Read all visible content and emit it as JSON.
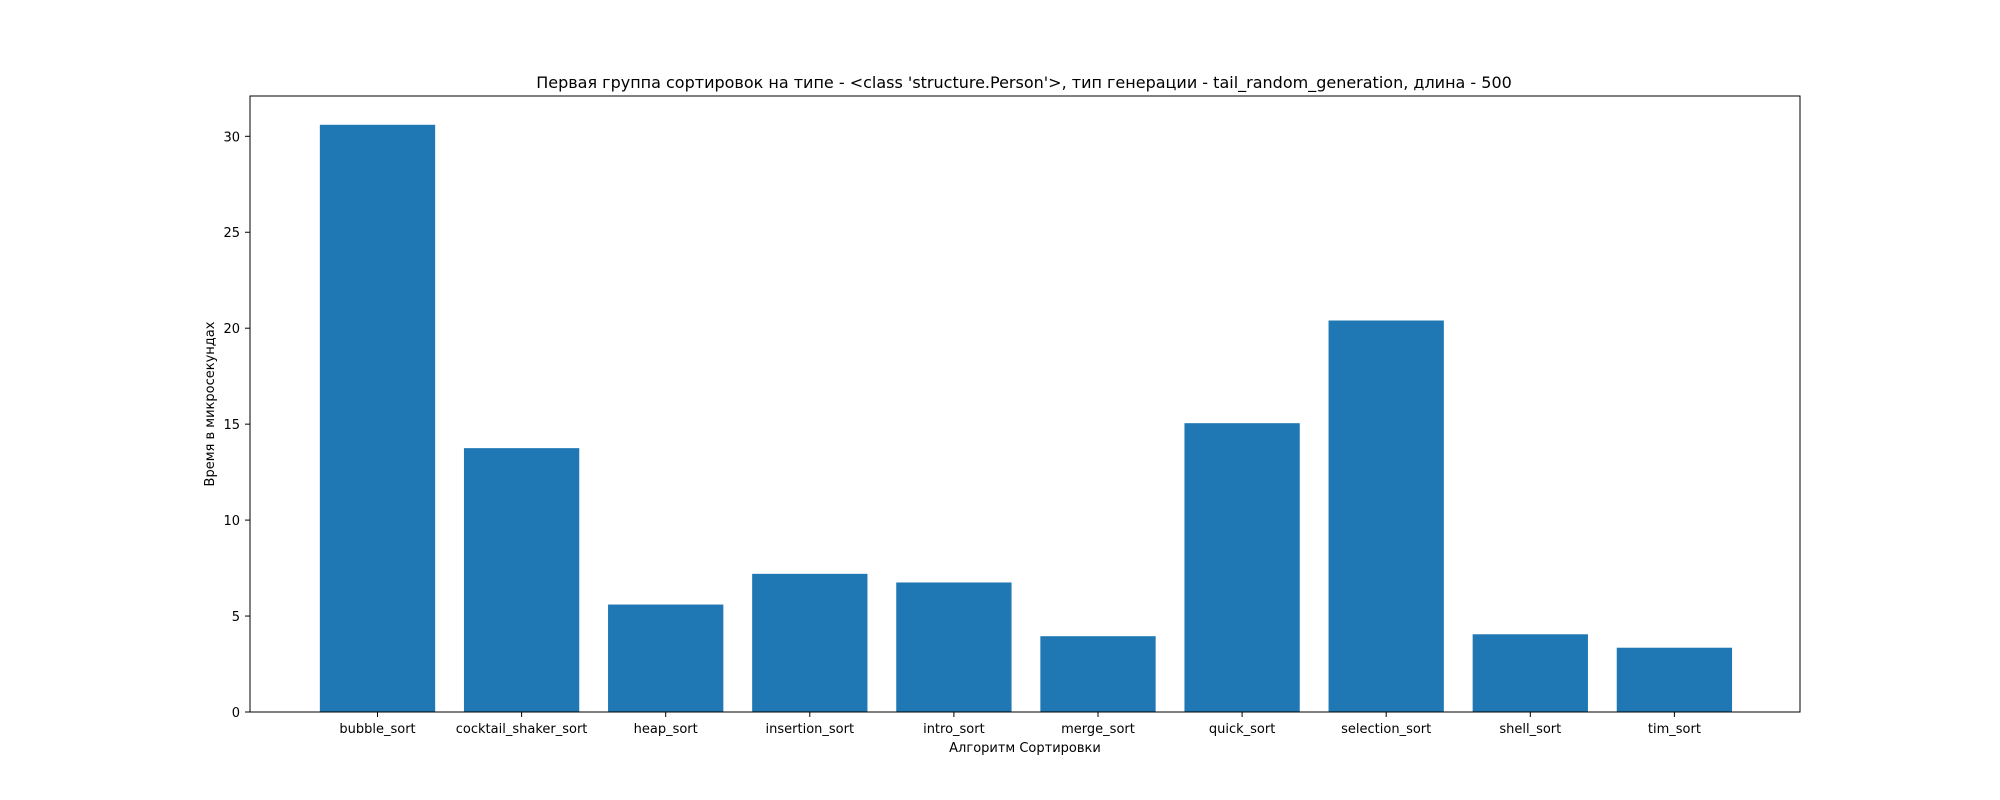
{
  "chart_data": {
    "type": "bar",
    "title": "Первая группа сортировок на типе - <class 'structure.Person'>, тип генерации - tail_random_generation, длина - 500",
    "xlabel": "Алгоритм Сортировки",
    "ylabel": "Время в микросекундах",
    "categories": [
      "bubble_sort",
      "cocktail_shaker_sort",
      "heap_sort",
      "insertion_sort",
      "intro_sort",
      "merge_sort",
      "quick_sort",
      "selection_sort",
      "shell_sort",
      "tim_sort"
    ],
    "values": [
      30.6,
      13.75,
      5.6,
      7.2,
      6.75,
      3.95,
      15.05,
      20.4,
      4.05,
      3.35
    ],
    "ylim": [
      0,
      32.1
    ],
    "yticks": [
      0,
      5,
      10,
      15,
      20,
      25,
      30
    ],
    "bar_color": "#1f77b4",
    "grid": false,
    "legend": "none"
  }
}
